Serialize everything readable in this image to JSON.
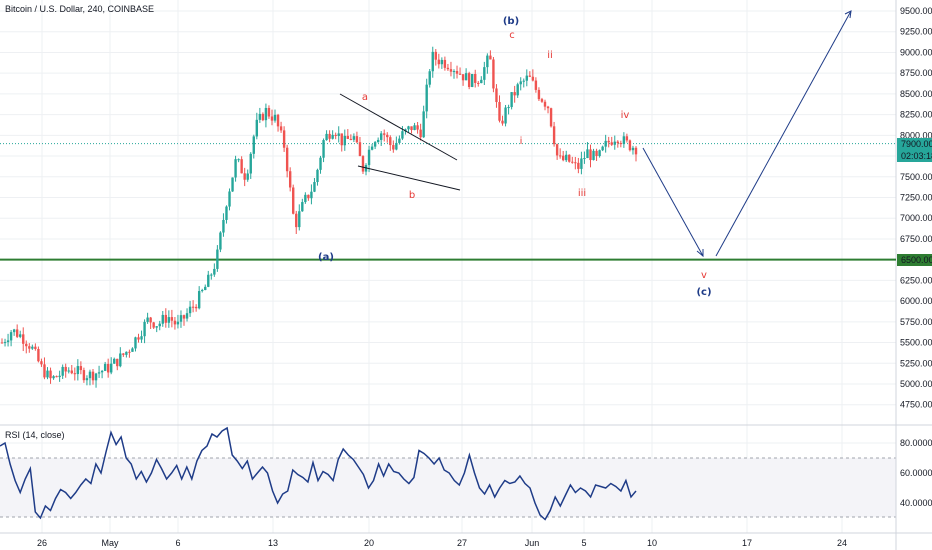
{
  "header": {
    "title": "Bitcoin / U.S. Dollar, 240, COINBASE"
  },
  "rsi_panel": {
    "title": "RSI (14, close)"
  },
  "colors": {
    "up": "#26a69a",
    "down": "#ef5350",
    "waves_red": "#e53935",
    "waves_blue": "#1f3c88",
    "support_line": "#2e7d32",
    "price_line": "#26a69a",
    "rsi_line": "#1f3c88"
  },
  "badges": {
    "last_price": "7900.00",
    "countdown": "02:03:18",
    "support": "6500.00"
  },
  "chart_data": [
    {
      "type": "candlestick",
      "title": "Bitcoin / U.S. Dollar, 240, COINBASE",
      "ylim": [
        4500,
        9700
      ],
      "yticks": [
        "4750.00",
        "5000.00",
        "5250.00",
        "5500.00",
        "5750.00",
        "6000.00",
        "6250.00",
        "6500.00",
        "6750.00",
        "7000.00",
        "7250.00",
        "7500.00",
        "7750.00",
        "8000.00",
        "8250.00",
        "8500.00",
        "8750.00",
        "9000.00",
        "9250.00",
        "9500.00"
      ],
      "xticks": [
        "26",
        "May",
        "6",
        "13",
        "20",
        "27",
        "Jun",
        "5",
        "10",
        "17",
        "24"
      ],
      "close_series": [
        5500,
        5650,
        5580,
        5450,
        5200,
        5050,
        5120,
        5180,
        5130,
        5110,
        5150,
        5200,
        5300,
        5420,
        5600,
        5780,
        5720,
        5820,
        5700,
        5850,
        6000,
        6200,
        6500,
        7200,
        7700,
        7500,
        8100,
        8300,
        8200,
        7850,
        6900,
        7200,
        7400,
        7950,
        8100,
        7900,
        8000,
        7600,
        7950,
        8050,
        7850,
        8000,
        8100,
        8050,
        8950,
        8900,
        8850,
        8750,
        8650,
        8700,
        8950,
        8100,
        8400,
        8600,
        8700,
        8500,
        8350,
        7700,
        7700,
        7600,
        7800,
        7700,
        7900,
        8000,
        7900,
        7850
      ],
      "wave_labels": [
        "(a)",
        "a",
        "b",
        "(b)",
        "c",
        "i",
        "ii",
        "iii",
        "iv",
        "v",
        "(c)"
      ],
      "support_level": 6500,
      "last_price": 7900
    },
    {
      "type": "line",
      "title": "RSI (14, close)",
      "ylim": [
        25,
        90
      ],
      "yticks": [
        "40.0000",
        "60.0000",
        "80.0000"
      ],
      "bands": [
        30,
        70
      ],
      "values": [
        78,
        80,
        66,
        55,
        47,
        56,
        63,
        34,
        30,
        38,
        35,
        43,
        49,
        47,
        43,
        47,
        52,
        56,
        53,
        66,
        60,
        74,
        87,
        79,
        84,
        70,
        66,
        56,
        61,
        54,
        60,
        69,
        63,
        56,
        60,
        65,
        56,
        64,
        56,
        68,
        75,
        78,
        86,
        84,
        88,
        90,
        72,
        68,
        63,
        68,
        56,
        60,
        64,
        60,
        48,
        40,
        46,
        48,
        62,
        59,
        57,
        54,
        67,
        55,
        61,
        59,
        55,
        69,
        76,
        72,
        69,
        64,
        59,
        50,
        55,
        66,
        58,
        66,
        61,
        60,
        56,
        53,
        57,
        75,
        73,
        70,
        66,
        70,
        62,
        60,
        55,
        52,
        60,
        72,
        60,
        50,
        46,
        52,
        44,
        50,
        55,
        53,
        54,
        58,
        53,
        50,
        40,
        32,
        29,
        35,
        44,
        38,
        45,
        52,
        47,
        50,
        48,
        44,
        52,
        51,
        50,
        53,
        51,
        48,
        55,
        44,
        48
      ]
    }
  ]
}
